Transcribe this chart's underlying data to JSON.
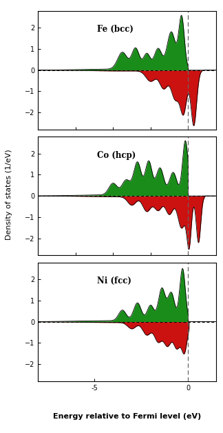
{
  "panels": [
    {
      "label": "Fe (bcc)"
    },
    {
      "label": "Co (hcp)"
    },
    {
      "label": "Ni (fcc)"
    }
  ],
  "xlabel": "Energy relative to Fermi level (eV)",
  "ylabel": "Density of states (1/eV)",
  "xlim": [
    -8.0,
    1.5
  ],
  "ylim": [
    -2.8,
    2.8
  ],
  "yticks": [
    -2,
    -1,
    0,
    1,
    2
  ],
  "xticks": [
    -5,
    0
  ],
  "fermi_x": 0.0,
  "green_color": "#1a8c1a",
  "red_color": "#cc1111",
  "black_color": "#000000",
  "background_color": "#ffffff",
  "dashed_color": "#666666"
}
